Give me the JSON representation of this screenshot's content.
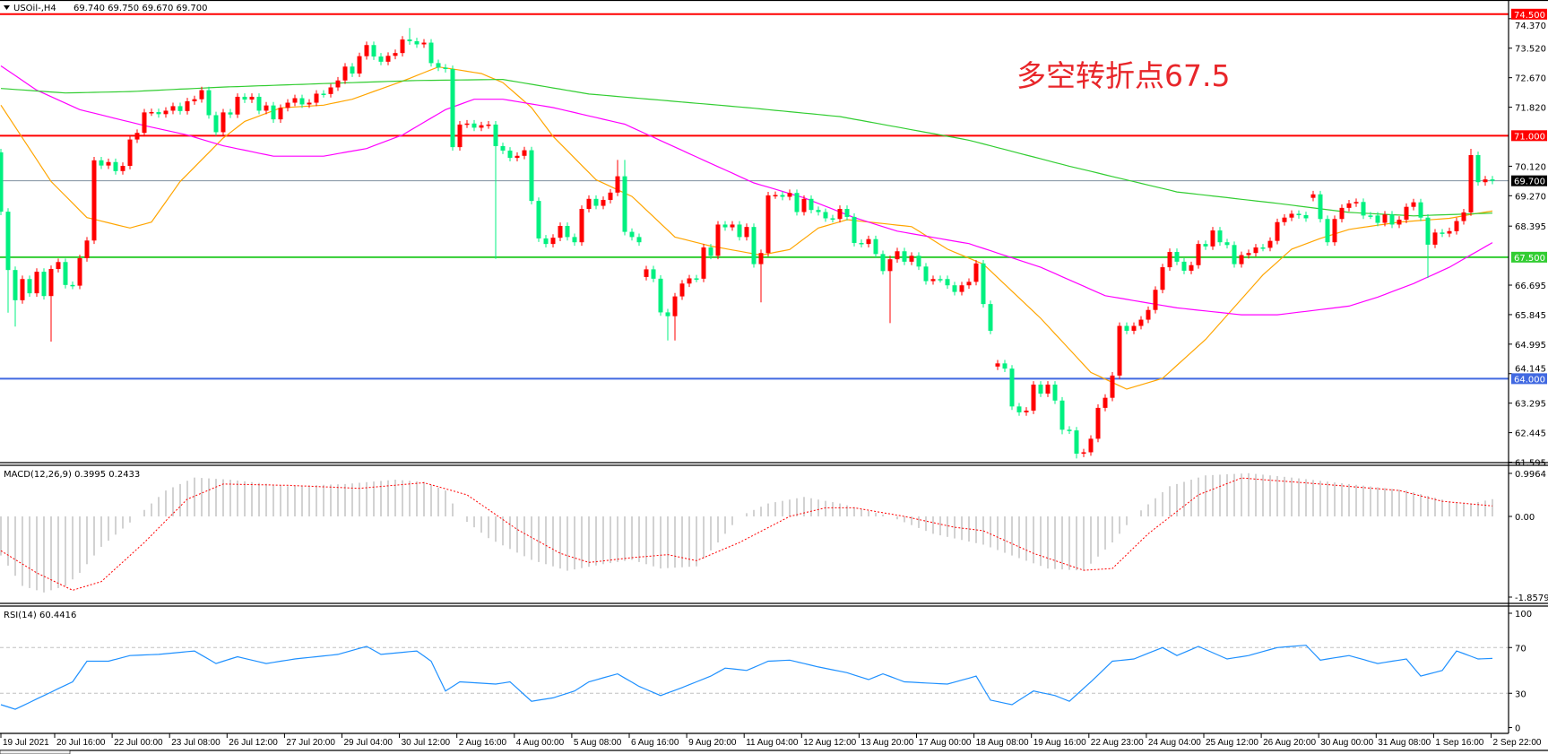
{
  "header": {
    "menu_icon": "triangle-down-icon",
    "title": "USOil-,H4",
    "ohlc": "69.740 69.750 69.670 69.700"
  },
  "annotation": "多空转折点67.5",
  "macd_title": "MACD(12,26,9) 0.3995 0.2433",
  "rsi_title": "RSI(14) 60.4416",
  "colors": {
    "up": "#ff0000",
    "down": "#00f080",
    "ma_fast": "#ffa500",
    "ma_mid": "#ff00ff",
    "ma_slow": "#32cd32",
    "macd_hist": "#b4b4b4",
    "macd_signal": "#ff0000",
    "rsi": "#1e90ff",
    "current_price_line": "#8090a0"
  },
  "chart_data": [
    {
      "type": "candlestick",
      "symbol": "USOil-",
      "timeframe": "H4",
      "ylim": [
        61.595,
        74.5
      ],
      "y_ticks": [
        "74.370",
        "73.520",
        "72.670",
        "71.820",
        "70.120",
        "69.270",
        "68.395",
        "66.695",
        "65.845",
        "64.995",
        "64.145",
        "63.295",
        "62.445",
        "61.595"
      ],
      "x_tick_labels": [
        "19 Jul 2021",
        "20 Jul 16:00",
        "22 Jul 00:00",
        "23 Jul 08:00",
        "26 Jul 12:00",
        "27 Jul 20:00",
        "29 Jul 04:00",
        "30 Jul 12:00",
        "2 Aug 16:00",
        "4 Aug 00:00",
        "5 Aug 08:00",
        "6 Aug 16:00",
        "9 Aug 20:00",
        "11 Aug 04:00",
        "12 Aug 12:00",
        "13 Aug 20:00",
        "17 Aug 00:00",
        "18 Aug 08:00",
        "19 Aug 16:00",
        "22 Aug 23:00",
        "24 Aug 04:00",
        "25 Aug 12:00",
        "26 Aug 20:00",
        "30 Aug 00:00",
        "31 Aug 08:00",
        "1 Sep 16:00",
        "2 Sep 22:00"
      ],
      "close": [
        68.81,
        67.13,
        66.26,
        66.87,
        66.46,
        67.08,
        66.38,
        67.16,
        67.36,
        66.7,
        66.68,
        67.47,
        67.98,
        70.29,
        70.14,
        70.24,
        69.98,
        70.13,
        70.89,
        71.08,
        71.67,
        71.68,
        71.62,
        71.72,
        71.85,
        71.71,
        71.99,
        72.05,
        72.31,
        71.59,
        71.1,
        71.67,
        71.61,
        72.12,
        72.04,
        72.12,
        71.72,
        71.87,
        71.47,
        71.8,
        71.95,
        72.08,
        71.9,
        71.95,
        72.21,
        72.2,
        72.39,
        72.59,
        72.99,
        72.79,
        73.29,
        73.61,
        73.28,
        73.13,
        73.3,
        73.38,
        73.77,
        73.72,
        73.63,
        73.68,
        73.09,
        72.96,
        72.92,
        70.67,
        71.32,
        71.35,
        71.23,
        71.3,
        71.32,
        70.7,
        70.57,
        70.36,
        70.42,
        70.58,
        69.12,
        68.04,
        67.88,
        68.06,
        68.4,
        68.08,
        67.93,
        68.89,
        69.18,
        68.98,
        69.15,
        69.36,
        69.83,
        68.23,
        68.08,
        67.93,
        67.15,
        66.88,
        65.91,
        65.8,
        66.37,
        66.74,
        66.89,
        66.88,
        67.78,
        67.54,
        68.44,
        68.36,
        68.44,
        68.08,
        68.37,
        67.3,
        67.62,
        69.28,
        69.29,
        69.24,
        69.35,
        68.8,
        69.18,
        68.86,
        68.8,
        68.62,
        68.6,
        68.89,
        68.66,
        67.91,
        67.88,
        68.02,
        67.59,
        67.1,
        67.44,
        67.67,
        67.37,
        67.54,
        67.23,
        66.81,
        66.87,
        66.87,
        66.69,
        66.5,
        66.69,
        66.79,
        67.32,
        66.15,
        65.38,
        64.44,
        64.29,
        63.2,
        63.03,
        63.08,
        63.83,
        63.57,
        63.83,
        63.37,
        62.53,
        62.51,
        61.84,
        61.88,
        62.27,
        63.16,
        63.45,
        64.09,
        65.52,
        65.38,
        65.52,
        65.7,
        65.98,
        66.56,
        67.21,
        67.65,
        67.37,
        67.11,
        67.27,
        67.88,
        67.81,
        68.27,
        67.93,
        67.85,
        67.3,
        67.56,
        67.62,
        67.78,
        67.77,
        67.97,
        68.51,
        68.64,
        68.75,
        68.71,
        68.62,
        69.31,
        68.6,
        67.93,
        68.6,
        68.92,
        69.05,
        69.09,
        68.7,
        68.7,
        68.49,
        68.73,
        68.44,
        68.58,
        68.95,
        69.08,
        68.64,
        67.86,
        68.21,
        68.18,
        68.25,
        68.54,
        68.79,
        70.44,
        69.66,
        69.74,
        69.7
      ],
      "gap_opens": {
        "0": 70.52,
        "90": 66.93,
        "139": 64.35,
        "183": 69.21
      },
      "highs": {
        "57": 74.1,
        "86": 70.3,
        "87": 70.3,
        "205": 70.62
      },
      "lows": {
        "1": 65.9,
        "2": 65.5,
        "7": 65.07,
        "69": 67.45,
        "93": 65.1,
        "94": 65.1,
        "106": 66.2,
        "124": 65.6,
        "148": 62.4,
        "150": 61.7,
        "199": 66.9
      },
      "moving_averages": [
        {
          "color_key": "ma_fast",
          "points": [
            [
              0,
              71.88
            ],
            [
              7,
              69.68
            ],
            [
              12,
              68.64
            ],
            [
              18,
              68.34
            ],
            [
              21,
              68.51
            ],
            [
              25,
              69.68
            ],
            [
              31,
              70.93
            ],
            [
              34,
              71.41
            ],
            [
              39,
              71.8
            ],
            [
              45,
              71.88
            ],
            [
              49,
              72.05
            ],
            [
              56,
              72.57
            ],
            [
              61,
              72.98
            ],
            [
              63,
              72.92
            ],
            [
              67,
              72.79
            ],
            [
              70,
              72.53
            ],
            [
              74,
              71.81
            ],
            [
              77,
              70.98
            ],
            [
              83,
              69.73
            ],
            [
              88,
              69.25
            ],
            [
              94,
              68.08
            ],
            [
              99,
              67.82
            ],
            [
              106,
              67.56
            ],
            [
              110,
              67.72
            ],
            [
              114,
              68.34
            ],
            [
              118,
              68.58
            ],
            [
              127,
              68.38
            ],
            [
              132,
              67.73
            ],
            [
              137,
              67.3
            ],
            [
              145,
              65.74
            ],
            [
              152,
              64.18
            ],
            [
              157,
              63.7
            ],
            [
              162,
              64.01
            ],
            [
              168,
              65.13
            ],
            [
              176,
              66.99
            ],
            [
              180,
              67.73
            ],
            [
              184,
              68.04
            ],
            [
              188,
              68.3
            ],
            [
              195,
              68.51
            ],
            [
              202,
              68.62
            ],
            [
              205,
              68.73
            ],
            [
              208,
              68.83
            ]
          ]
        },
        {
          "color_key": "ma_mid",
          "points": [
            [
              0,
              73.01
            ],
            [
              5,
              72.31
            ],
            [
              11,
              71.75
            ],
            [
              20,
              71.29
            ],
            [
              26,
              71.02
            ],
            [
              31,
              70.71
            ],
            [
              38,
              70.41
            ],
            [
              45,
              70.41
            ],
            [
              51,
              70.63
            ],
            [
              56,
              71.02
            ],
            [
              62,
              71.75
            ],
            [
              66,
              72.05
            ],
            [
              70,
              72.05
            ],
            [
              77,
              71.81
            ],
            [
              87,
              71.33
            ],
            [
              99,
              70.2
            ],
            [
              105,
              69.64
            ],
            [
              112,
              69.21
            ],
            [
              119,
              68.64
            ],
            [
              125,
              68.25
            ],
            [
              135,
              67.89
            ],
            [
              145,
              67.21
            ],
            [
              154,
              66.39
            ],
            [
              164,
              66.04
            ],
            [
              173,
              65.84
            ],
            [
              178,
              65.84
            ],
            [
              188,
              66.09
            ],
            [
              192,
              66.35
            ],
            [
              197,
              66.74
            ],
            [
              202,
              67.21
            ],
            [
              208,
              67.92
            ]
          ]
        },
        {
          "color_key": "ma_slow",
          "points": [
            [
              0,
              72.36
            ],
            [
              9,
              72.23
            ],
            [
              18,
              72.27
            ],
            [
              31,
              72.4
            ],
            [
              45,
              72.5
            ],
            [
              58,
              72.59
            ],
            [
              70,
              72.62
            ],
            [
              82,
              72.2
            ],
            [
              104,
              71.81
            ],
            [
              117,
              71.55
            ],
            [
              135,
              70.87
            ],
            [
              149,
              70.12
            ],
            [
              164,
              69.38
            ],
            [
              178,
              69.05
            ],
            [
              188,
              68.79
            ],
            [
              197,
              68.69
            ],
            [
              208,
              68.77
            ]
          ]
        }
      ],
      "levels": [
        {
          "price": 74.5,
          "label": "74.500",
          "color": "#ff0000"
        },
        {
          "price": 71.0,
          "label": "71.000",
          "color": "#ff0000"
        },
        {
          "price": 67.5,
          "label": "67.500",
          "color": "#32cd32"
        },
        {
          "price": 64.0,
          "label": "64.000",
          "color": "#4169e1"
        }
      ],
      "current_price": {
        "price": 69.7,
        "label": "69.700"
      }
    },
    {
      "type": "bar+line",
      "title": "MACD(12,26,9) 0.3995 0.2433",
      "ylim": [
        -1.8579,
        0.9964
      ],
      "y_ticks": [
        "0.9964",
        "0.00",
        "-1.8579"
      ],
      "histogram": [
        [
          0,
          -0.9
        ],
        [
          3,
          -1.6
        ],
        [
          6,
          -1.75
        ],
        [
          9,
          -1.6
        ],
        [
          11,
          -1.3
        ],
        [
          14,
          -0.7
        ],
        [
          19,
          0
        ],
        [
          23,
          0.6
        ],
        [
          27,
          0.9
        ],
        [
          32,
          0.85
        ],
        [
          40,
          0.7
        ],
        [
          48,
          0.75
        ],
        [
          55,
          0.85
        ],
        [
          59,
          0.8
        ],
        [
          62,
          0.6
        ],
        [
          64,
          0
        ],
        [
          68,
          -0.5
        ],
        [
          74,
          -1.0
        ],
        [
          79,
          -1.25
        ],
        [
          84,
          -1.1
        ],
        [
          88,
          -1.0
        ],
        [
          92,
          -1.2
        ],
        [
          97,
          -1.15
        ],
        [
          100,
          -0.6
        ],
        [
          103,
          0
        ],
        [
          107,
          0.3
        ],
        [
          112,
          0.45
        ],
        [
          117,
          0.3
        ],
        [
          124,
          0
        ],
        [
          130,
          -0.4
        ],
        [
          137,
          -0.65
        ],
        [
          141,
          -0.9
        ],
        [
          146,
          -1.2
        ],
        [
          151,
          -1.25
        ],
        [
          155,
          -0.6
        ],
        [
          158,
          0
        ],
        [
          163,
          0.7
        ],
        [
          168,
          0.95
        ],
        [
          174,
          1.0
        ],
        [
          180,
          0.9
        ],
        [
          188,
          0.75
        ],
        [
          196,
          0.6
        ],
        [
          202,
          0.35
        ],
        [
          205,
          0.3
        ],
        [
          208,
          0.3995
        ]
      ],
      "signal": [
        [
          0,
          -0.79
        ],
        [
          5,
          -1.3
        ],
        [
          10,
          -1.7
        ],
        [
          14,
          -1.5
        ],
        [
          20,
          -0.6
        ],
        [
          26,
          0.4
        ],
        [
          31,
          0.75
        ],
        [
          40,
          0.72
        ],
        [
          50,
          0.65
        ],
        [
          59,
          0.78
        ],
        [
          65,
          0.5
        ],
        [
          72,
          -0.3
        ],
        [
          78,
          -0.85
        ],
        [
          82,
          -1.06
        ],
        [
          88,
          -0.95
        ],
        [
          93,
          -0.88
        ],
        [
          97,
          -1.02
        ],
        [
          103,
          -0.6
        ],
        [
          110,
          0
        ],
        [
          115,
          0.2
        ],
        [
          119,
          0.2
        ],
        [
          126,
          0
        ],
        [
          133,
          -0.25
        ],
        [
          137,
          -0.33
        ],
        [
          144,
          -0.85
        ],
        [
          151,
          -1.24
        ],
        [
          155,
          -1.2
        ],
        [
          160,
          -0.4
        ],
        [
          167,
          0.5
        ],
        [
          173,
          0.89
        ],
        [
          184,
          0.75
        ],
        [
          195,
          0.6
        ],
        [
          201,
          0.35
        ],
        [
          208,
          0.2433
        ]
      ]
    },
    {
      "type": "line",
      "title": "RSI(14) 60.4416",
      "ylim": [
        0,
        100
      ],
      "y_ticks": [
        "100",
        "70",
        "30",
        "0"
      ],
      "levels": [
        70,
        30
      ],
      "values": [
        [
          0,
          20
        ],
        [
          2,
          16
        ],
        [
          6,
          28
        ],
        [
          10,
          40
        ],
        [
          12,
          58
        ],
        [
          15,
          58
        ],
        [
          18,
          63
        ],
        [
          22,
          64
        ],
        [
          27,
          67
        ],
        [
          30,
          56
        ],
        [
          33,
          62
        ],
        [
          37,
          56
        ],
        [
          41,
          60
        ],
        [
          47,
          64
        ],
        [
          51,
          71
        ],
        [
          53,
          64
        ],
        [
          58,
          67
        ],
        [
          60,
          58
        ],
        [
          62,
          32
        ],
        [
          64,
          40
        ],
        [
          69,
          38
        ],
        [
          71,
          40
        ],
        [
          74,
          23
        ],
        [
          77,
          26
        ],
        [
          80,
          32
        ],
        [
          82,
          40
        ],
        [
          86,
          47
        ],
        [
          89,
          36
        ],
        [
          92,
          28
        ],
        [
          95,
          35
        ],
        [
          99,
          45
        ],
        [
          101,
          52
        ],
        [
          104,
          50
        ],
        [
          107,
          58
        ],
        [
          110,
          59
        ],
        [
          114,
          53
        ],
        [
          118,
          48
        ],
        [
          121,
          42
        ],
        [
          123,
          47
        ],
        [
          126,
          40
        ],
        [
          132,
          38
        ],
        [
          136,
          45
        ],
        [
          138,
          24
        ],
        [
          141,
          20
        ],
        [
          144,
          32
        ],
        [
          147,
          28
        ],
        [
          149,
          23
        ],
        [
          152,
          40
        ],
        [
          155,
          58
        ],
        [
          158,
          60
        ],
        [
          162,
          70
        ],
        [
          164,
          63
        ],
        [
          167,
          71
        ],
        [
          171,
          60
        ],
        [
          174,
          63
        ],
        [
          178,
          70
        ],
        [
          182,
          72
        ],
        [
          184,
          59
        ],
        [
          188,
          63
        ],
        [
          192,
          56
        ],
        [
          196,
          60
        ],
        [
          198,
          45
        ],
        [
          201,
          50
        ],
        [
          203,
          67
        ],
        [
          206,
          60
        ],
        [
          208,
          60.4416
        ]
      ]
    }
  ]
}
